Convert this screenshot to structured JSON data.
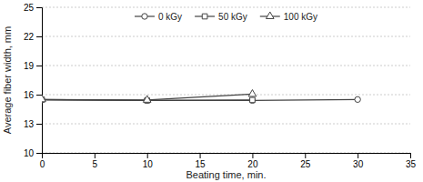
{
  "chart_data": {
    "type": "line",
    "xlabel": "Beating time, min.",
    "ylabel": "Average fiber width, mm",
    "xlim": [
      0,
      35
    ],
    "ylim": [
      10,
      25
    ],
    "xticks": [
      0,
      5,
      10,
      15,
      20,
      25,
      30,
      35
    ],
    "yticks": [
      10,
      13,
      16,
      19,
      22,
      25
    ],
    "grid": "y",
    "legend": "top",
    "series": [
      {
        "name": "0 kGy",
        "color": "#444444",
        "marker": "circle",
        "x": [
          0,
          10,
          20,
          30
        ],
        "values": [
          15.45,
          15.4,
          15.4,
          15.5
        ]
      },
      {
        "name": "50 kGy",
        "color": "#444444",
        "marker": "square",
        "x": [
          0,
          10,
          20
        ],
        "values": [
          15.5,
          15.4,
          15.45
        ]
      },
      {
        "name": "100 kGy",
        "color": "#444444",
        "marker": "triangle",
        "x": [
          0,
          10,
          20
        ],
        "values": [
          15.5,
          15.45,
          16.05
        ]
      }
    ]
  }
}
